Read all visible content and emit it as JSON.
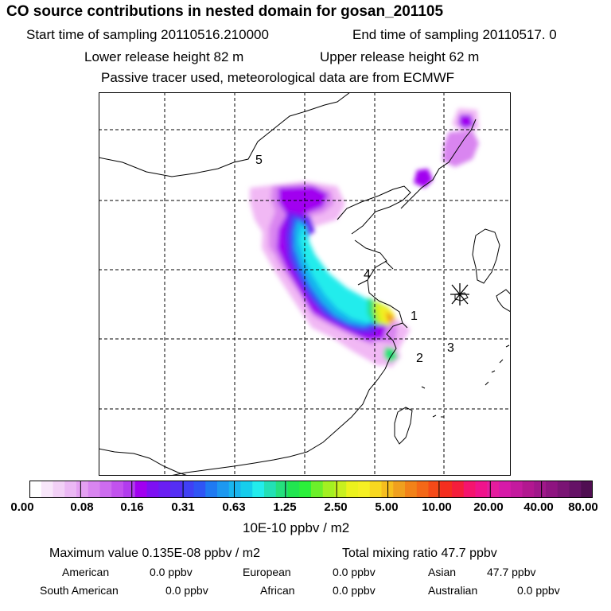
{
  "header": {
    "title": "CO  source contributions in nested domain for gosan_201105",
    "start_label": "Start time of sampling 20110516.210000",
    "end_label": "End time of sampling 20110517.     0",
    "lower_label": "Lower release height   82 m",
    "upper_label": "Upper release height   62 m",
    "note": "Passive tracer used, meteorological data are from ECMWF"
  },
  "map": {
    "labels": [
      "1",
      "2",
      "3",
      "4",
      "5"
    ],
    "station_marker": "asterisk-icon",
    "plume_colors": {
      "faint": "#f1b8f4",
      "light_violet": "#d985f0",
      "violet": "#a100f0",
      "purple": "#6a1ef2",
      "blue": "#2f55f5",
      "sky": "#19b5ee",
      "cyan": "#23ecec",
      "green": "#25e07d",
      "yellow_green": "#c8f01f",
      "yellow": "#f6f023",
      "orange": "#f0a01e"
    }
  },
  "colorbar": {
    "colors": [
      "#ffffff",
      "#f8e6fa",
      "#f2d0f6",
      "#ebb8f4",
      "#e4a0f2",
      "#d985f0",
      "#cd6cef",
      "#c252ee",
      "#b23cee",
      "#a100f0",
      "#7e10f2",
      "#6a1ef2",
      "#552ef4",
      "#4040f5",
      "#2f55f5",
      "#1f7af2",
      "#1d98f0",
      "#19b5ee",
      "#16cdec",
      "#23ecec",
      "#23e0b5",
      "#25e07d",
      "#21e550",
      "#2bf03a",
      "#6cf02a",
      "#a3f021",
      "#c8f01f",
      "#ecf21d",
      "#f6f023",
      "#f8d820",
      "#f6be1e",
      "#f0a01e",
      "#f28219",
      "#f46818",
      "#f54a18",
      "#f52e1f",
      "#f51e3c",
      "#f5146e",
      "#f0138c",
      "#e41c9e",
      "#d61aa8",
      "#c41a9e",
      "#b21890",
      "#a0188a",
      "#8e1480",
      "#7a1474",
      "#651266",
      "#500e52"
    ],
    "ticks": [
      "0.00",
      "0.08",
      "0.16",
      "0.31",
      "0.63",
      "1.25",
      "2.50",
      "5.00",
      "10.00",
      "20.00",
      "40.00",
      "80.00"
    ],
    "unit": "10E-10 ppbv / m2"
  },
  "footer": {
    "max_label": "Maximum value  0.135E-08 ppbv / m2",
    "total_label": "Total mixing ratio      47.7 ppbv",
    "regions": [
      {
        "name": "American",
        "value": "0.0 ppbv"
      },
      {
        "name": "European",
        "value": "0.0 ppbv"
      },
      {
        "name": "Asian",
        "value": "47.7 ppbv"
      },
      {
        "name": "South American",
        "value": "0.0 ppbv"
      },
      {
        "name": "African",
        "value": "0.0 ppbv"
      },
      {
        "name": "Australian",
        "value": "0.0 ppbv"
      }
    ]
  }
}
